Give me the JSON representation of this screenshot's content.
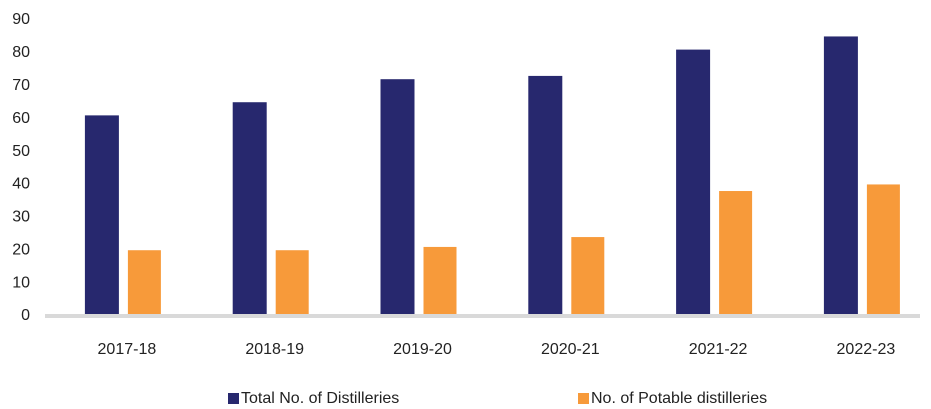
{
  "chart_data": {
    "type": "bar",
    "categories": [
      "2017-18",
      "2018-19",
      "2019-20",
      "2020-21",
      "2021-22",
      "2022-23"
    ],
    "series": [
      {
        "name": "Total No. of Distilleries",
        "color": "#27286e",
        "values": [
          61,
          65,
          72,
          73,
          81,
          85
        ]
      },
      {
        "name": "No. of Potable distilleries",
        "color": "#f79a3a",
        "values": [
          20,
          20,
          21,
          24,
          38,
          40
        ]
      }
    ],
    "ylim": [
      0,
      90
    ],
    "yticks": [
      0,
      10,
      20,
      30,
      40,
      50,
      60,
      70,
      80,
      90
    ],
    "grid": false,
    "legend": "bottom"
  }
}
